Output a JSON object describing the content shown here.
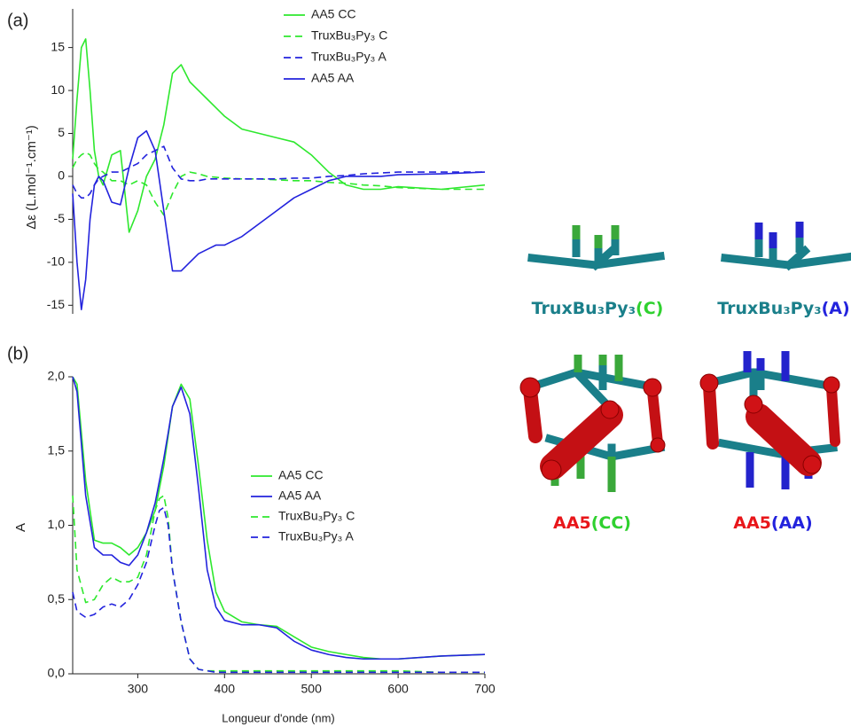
{
  "chart_data": [
    {
      "type": "line",
      "panel": "(a)",
      "ylabel": "Δε (L.mol⁻¹.cm⁻¹)",
      "x": [
        225,
        230,
        235,
        240,
        245,
        250,
        255,
        260,
        270,
        280,
        290,
        300,
        310,
        320,
        330,
        340,
        350,
        360,
        370,
        380,
        390,
        400,
        420,
        440,
        460,
        480,
        500,
        520,
        540,
        560,
        580,
        600,
        650,
        700
      ],
      "xlim": [
        225,
        700
      ],
      "ylim": [
        -16,
        19.5
      ],
      "yticks": [
        15,
        10,
        5,
        0,
        -5,
        -10,
        -15
      ],
      "series": [
        {
          "name": "AA5 CC",
          "color": "#2ee82e",
          "linestyle": "solid",
          "values": [
            2,
            9,
            15,
            16,
            10,
            3,
            0,
            -1,
            2.5,
            3,
            -6.5,
            -4,
            0,
            2,
            6,
            12,
            13,
            11,
            10,
            9,
            8,
            7,
            5.5,
            5,
            4.5,
            4,
            2.5,
            0.5,
            -1,
            -1.5,
            -1.5,
            -1.2,
            -1.5,
            -1
          ]
        },
        {
          "name": "TruxBu₃Py₃ C",
          "color": "#2ee82e",
          "linestyle": "dashed",
          "values": [
            1,
            2,
            2.5,
            2.8,
            2.5,
            1.5,
            0.8,
            0.5,
            -0.5,
            -0.5,
            -1,
            -0.5,
            -1,
            -3,
            -4.5,
            -2,
            0,
            0.5,
            0.3,
            0,
            -0.1,
            -0.2,
            -0.3,
            -0.3,
            -0.4,
            -0.5,
            -0.5,
            -0.7,
            -0.8,
            -1,
            -1.1,
            -1.3,
            -1.5,
            -1.5
          ]
        },
        {
          "name": "TruxBu₃Py₃ A",
          "color": "#2323dd",
          "linestyle": "dashed",
          "values": [
            -1,
            -2,
            -2.5,
            -2.5,
            -2,
            -1,
            -0.3,
            0,
            0.5,
            0.5,
            1,
            1.5,
            2.5,
            3,
            3.5,
            1,
            -0.3,
            -0.5,
            -0.5,
            -0.3,
            -0.3,
            -0.3,
            -0.3,
            -0.3,
            -0.3,
            -0.2,
            -0.2,
            0,
            0.1,
            0.3,
            0.4,
            0.5,
            0.5,
            0.5
          ]
        },
        {
          "name": "AA5 AA",
          "color": "#2323dd",
          "linestyle": "solid",
          "values": [
            -2,
            -10,
            -15.5,
            -12,
            -5,
            -1,
            0,
            -0.5,
            -3,
            -3.3,
            1,
            4.5,
            5.3,
            3,
            -4,
            -11,
            -11,
            -10,
            -9,
            -8.5,
            -8,
            -8,
            -7,
            -5.5,
            -4,
            -2.5,
            -1.5,
            -0.5,
            0,
            0,
            0,
            0.2,
            0.3,
            0.5
          ]
        }
      ]
    },
    {
      "type": "line",
      "panel": "(b)",
      "xlabel": "Longueur d'onde (nm)",
      "ylabel": "A",
      "x": [
        225,
        230,
        240,
        250,
        260,
        270,
        280,
        290,
        300,
        310,
        320,
        325,
        330,
        335,
        340,
        350,
        360,
        370,
        380,
        390,
        400,
        420,
        440,
        460,
        480,
        500,
        520,
        540,
        560,
        580,
        600,
        650,
        700
      ],
      "xlim": [
        225,
        700
      ],
      "xticks": [
        300,
        400,
        500,
        600,
        700
      ],
      "ylim": [
        0,
        2.0
      ],
      "yticks": [
        {
          "value": 0,
          "label": "0,0"
        },
        {
          "value": 0.5,
          "label": "0,5"
        },
        {
          "value": 1.0,
          "label": "1,0"
        },
        {
          "value": 1.5,
          "label": "1,5"
        },
        {
          "value": 2.0,
          "label": "2,0"
        }
      ],
      "series": [
        {
          "name": "AA5 CC",
          "color": "#2ee82e",
          "linestyle": "solid",
          "values": [
            2.0,
            1.95,
            1.3,
            0.9,
            0.88,
            0.88,
            0.85,
            0.8,
            0.85,
            0.95,
            1.1,
            1.25,
            1.4,
            1.6,
            1.8,
            1.95,
            1.85,
            1.4,
            0.9,
            0.55,
            0.42,
            0.35,
            0.33,
            0.32,
            0.25,
            0.18,
            0.15,
            0.13,
            0.11,
            0.1,
            0.1,
            0.12,
            0.13
          ]
        },
        {
          "name": "AA5 AA",
          "color": "#2323dd",
          "linestyle": "solid",
          "values": [
            2.0,
            1.9,
            1.2,
            0.85,
            0.8,
            0.8,
            0.75,
            0.73,
            0.8,
            0.95,
            1.15,
            1.3,
            1.45,
            1.62,
            1.8,
            1.93,
            1.75,
            1.25,
            0.7,
            0.45,
            0.36,
            0.33,
            0.33,
            0.31,
            0.22,
            0.16,
            0.13,
            0.11,
            0.1,
            0.1,
            0.1,
            0.12,
            0.13
          ]
        },
        {
          "name": "TruxBu₃Py₃ C",
          "color": "#2ee82e",
          "linestyle": "dashed",
          "values": [
            1.2,
            0.7,
            0.48,
            0.5,
            0.6,
            0.65,
            0.62,
            0.62,
            0.65,
            0.8,
            1.1,
            1.18,
            1.2,
            1.05,
            0.7,
            0.35,
            0.1,
            0.03,
            0.02,
            0.02,
            0.02,
            0.02,
            0.02,
            0.02,
            0.02,
            0.02,
            0.02,
            0.02,
            0.02,
            0.02,
            0.02,
            0.01,
            0.01
          ]
        },
        {
          "name": "TruxBu₃Py₃ A",
          "color": "#2323dd",
          "linestyle": "dashed",
          "values": [
            0.55,
            0.42,
            0.38,
            0.4,
            0.45,
            0.47,
            0.45,
            0.5,
            0.6,
            0.75,
            1.0,
            1.1,
            1.12,
            1.0,
            0.7,
            0.35,
            0.1,
            0.03,
            0.02,
            0.01,
            0.01,
            0.01,
            0.01,
            0.01,
            0.01,
            0.01,
            0.01,
            0.01,
            0.01,
            0.01,
            0.01,
            0.01,
            0.01
          ]
        }
      ]
    }
  ],
  "molecules": [
    {
      "name": "TruxBu₃Py₃",
      "tag": "(C)"
    },
    {
      "name": "TruxBu₃Py₃",
      "tag": "(A)"
    },
    {
      "name": "AA5",
      "tag": "(CC)"
    },
    {
      "name": "AA5",
      "tag": "(AA)"
    }
  ]
}
